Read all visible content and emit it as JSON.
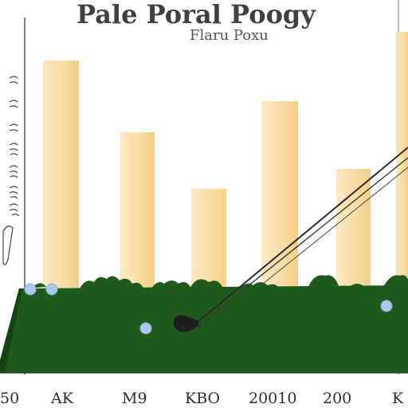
{
  "title": "Pale Poral Poogy",
  "subtitle": "Flaru Poxu",
  "bottom_ticks": [
    "50",
    "AK",
    "M9",
    "KBO",
    "20010",
    "200",
    "K"
  ],
  "colors": {
    "bar_fill": "#f7d798",
    "bar_highlight": "#fbe9c4",
    "green": "#1f5c1c",
    "green_dark": "#154515",
    "ball": "#a9c9ea",
    "club": "#222222"
  },
  "icons": [
    "golf-club-icon",
    "golf-ball-icon"
  ]
}
